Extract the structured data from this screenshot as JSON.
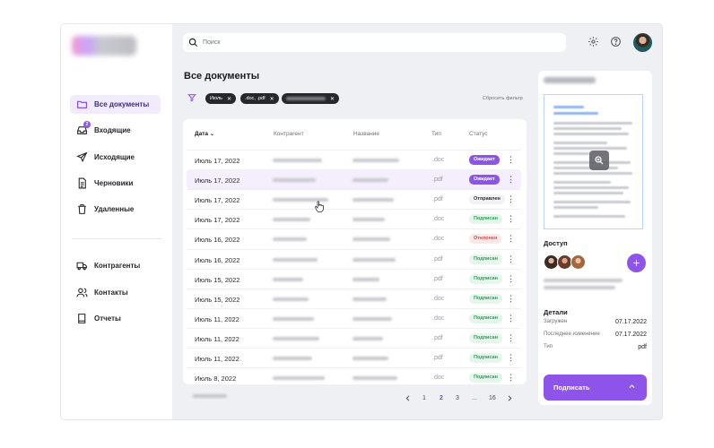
{
  "sidebar": {
    "items": [
      {
        "label": "Все документы",
        "icon": "folder-icon",
        "active": true
      },
      {
        "label": "Входящие",
        "icon": "inbox-icon",
        "badge": "2"
      },
      {
        "label": "Исходящие",
        "icon": "send-icon"
      },
      {
        "label": "Черновики",
        "icon": "draft-document-icon"
      },
      {
        "label": "Удаленные",
        "icon": "trash-icon"
      },
      {
        "label": "Контрагенты",
        "icon": "truck-icon"
      },
      {
        "label": "Контакты",
        "icon": "users-icon"
      },
      {
        "label": "Отчеты",
        "icon": "book-icon"
      }
    ]
  },
  "search": {
    "placeholder": "Поиск"
  },
  "header": {
    "settings_icon": "gear-icon",
    "help_icon": "question-icon"
  },
  "main": {
    "title": "Все документы",
    "filters": [
      {
        "label": "Июль"
      },
      {
        "label": ".doc, .pdf"
      },
      {
        "label": ""
      }
    ],
    "reset_label": "Сбросить фильтр",
    "columns": [
      "Дата",
      "Контрагент",
      "Название",
      "Тип",
      "Статус"
    ],
    "rows": [
      {
        "date": "Июль 17, 2022",
        "type": ".doc",
        "status": "Ожидает",
        "kind": "wait"
      },
      {
        "date": "Июль 17, 2022",
        "type": ".pdf",
        "status": "Ожидает",
        "kind": "wait"
      },
      {
        "date": "Июль 17, 2022",
        "type": ".pdf",
        "status": "Отправлен",
        "kind": "sent"
      },
      {
        "date": "Июль 17, 2022",
        "type": ".doc",
        "status": "Подписан",
        "kind": "signed"
      },
      {
        "date": "Июль 16, 2022",
        "type": ".doc",
        "status": "Отклонен",
        "kind": "rej"
      },
      {
        "date": "Июль 16, 2022",
        "type": ".pdf",
        "status": "Подписан",
        "kind": "signed"
      },
      {
        "date": "Июль 15, 2022",
        "type": ".pdf",
        "status": "Подписан",
        "kind": "signed"
      },
      {
        "date": "Июль 15, 2022",
        "type": ".doc",
        "status": "Подписан",
        "kind": "signed"
      },
      {
        "date": "Июль 11, 2022",
        "type": ".doc",
        "status": "Подписан",
        "kind": "signed"
      },
      {
        "date": "Июль 11, 2022",
        "type": ".pdf",
        "status": "Подписан",
        "kind": "signed"
      },
      {
        "date": "Июль 11, 2022",
        "type": ".pdf",
        "status": "Подписан",
        "kind": "signed"
      },
      {
        "date": "Июль 8, 2022",
        "type": ".doc",
        "status": "Подписан",
        "kind": "signed"
      }
    ],
    "pagination": {
      "pages": [
        "1",
        "2",
        "3",
        "...",
        "16"
      ],
      "current": "2"
    }
  },
  "panel": {
    "access_title": "Доступ",
    "details_title": "Детали",
    "details": [
      {
        "label": "Загружен",
        "value": "07.17.2022"
      },
      {
        "label": "Последнее изменение",
        "value": "07.17.2022"
      },
      {
        "label": "Тип",
        "value": "pdf"
      }
    ],
    "sign_label": "Подписать"
  },
  "colors": {
    "accent": "#8e54e9",
    "signed": "#2e9e57",
    "rejected": "#d94848"
  }
}
